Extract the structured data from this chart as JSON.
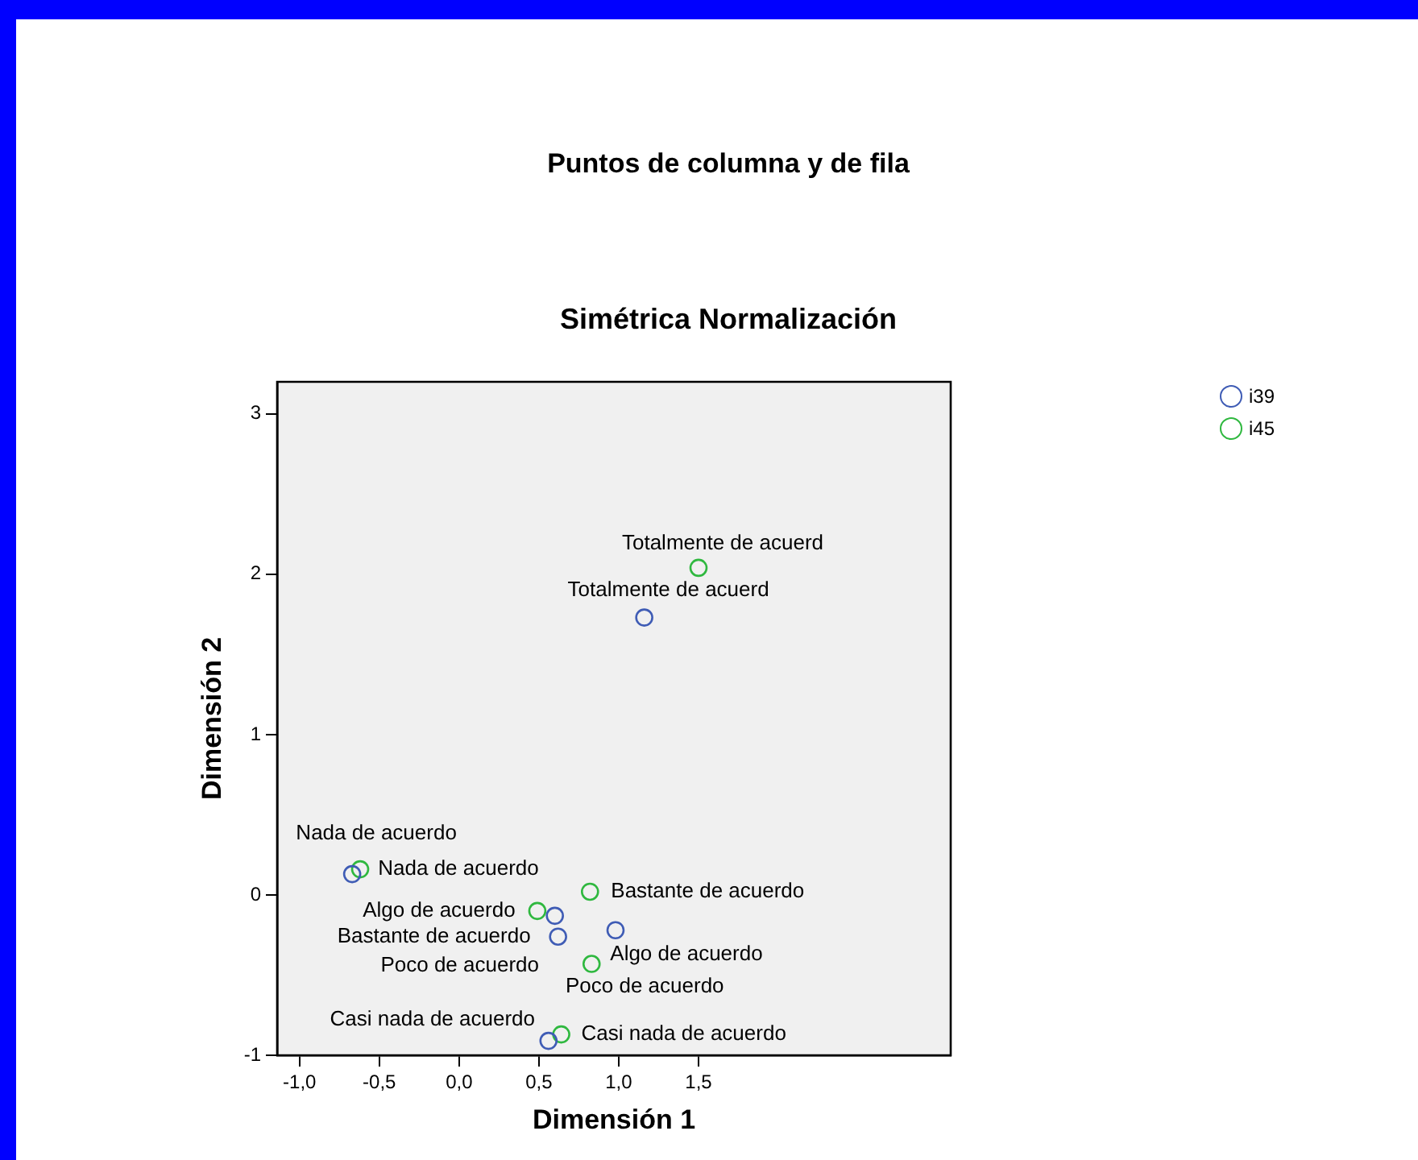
{
  "chart_data": {
    "type": "scatter",
    "title": "Puntos de columna y de fila",
    "subtitle": "Simétrica Normalización",
    "xlabel": "Dimensión 1",
    "ylabel": "Dimensión 2",
    "series": [
      {
        "name": "i39",
        "color": "#3f5cb5",
        "x": [
          -0.67,
          0.6,
          0.62,
          0.98,
          0.56,
          1.16
        ],
        "values": [
          0.13,
          -0.13,
          -0.26,
          -0.22,
          -0.91,
          1.73
        ],
        "value_labels": [
          "Nada de acuerdo",
          "Poco de acuerdo",
          "Bastante de acuerdo",
          "Algo de acuerdo",
          "Casi nada de acuerdo",
          "Totalmente de acuerd"
        ]
      },
      {
        "name": "i45",
        "color": "#2fb83f",
        "x": [
          -0.62,
          0.82,
          0.49,
          0.83,
          0.64,
          1.5
        ],
        "values": [
          0.16,
          0.02,
          -0.1,
          -0.43,
          -0.87,
          2.04
        ],
        "value_labels": [
          "Nada de acuerdo",
          "Bastante de acuerdo",
          "Algo de acuerdo",
          "Poco de acuerdo",
          "Casi nada de acuerdo",
          "Totalmente de acuerd"
        ]
      }
    ],
    "xlim": [
      -1.14,
      3.08
    ],
    "ylim": [
      -1.0,
      3.2
    ],
    "xticks": [
      {
        "value": -1,
        "label": "-1,0"
      },
      {
        "value": -0.5,
        "label": "-0,5"
      },
      {
        "value": 0,
        "label": "0,0"
      },
      {
        "value": 0.5,
        "label": "0,5"
      },
      {
        "value": 1,
        "label": "1,0"
      },
      {
        "value": 1.5,
        "label": "1,5"
      }
    ],
    "yticks": [
      -1,
      0,
      1,
      2,
      3
    ],
    "grid": false,
    "legend": "top right",
    "marker": "circle"
  }
}
